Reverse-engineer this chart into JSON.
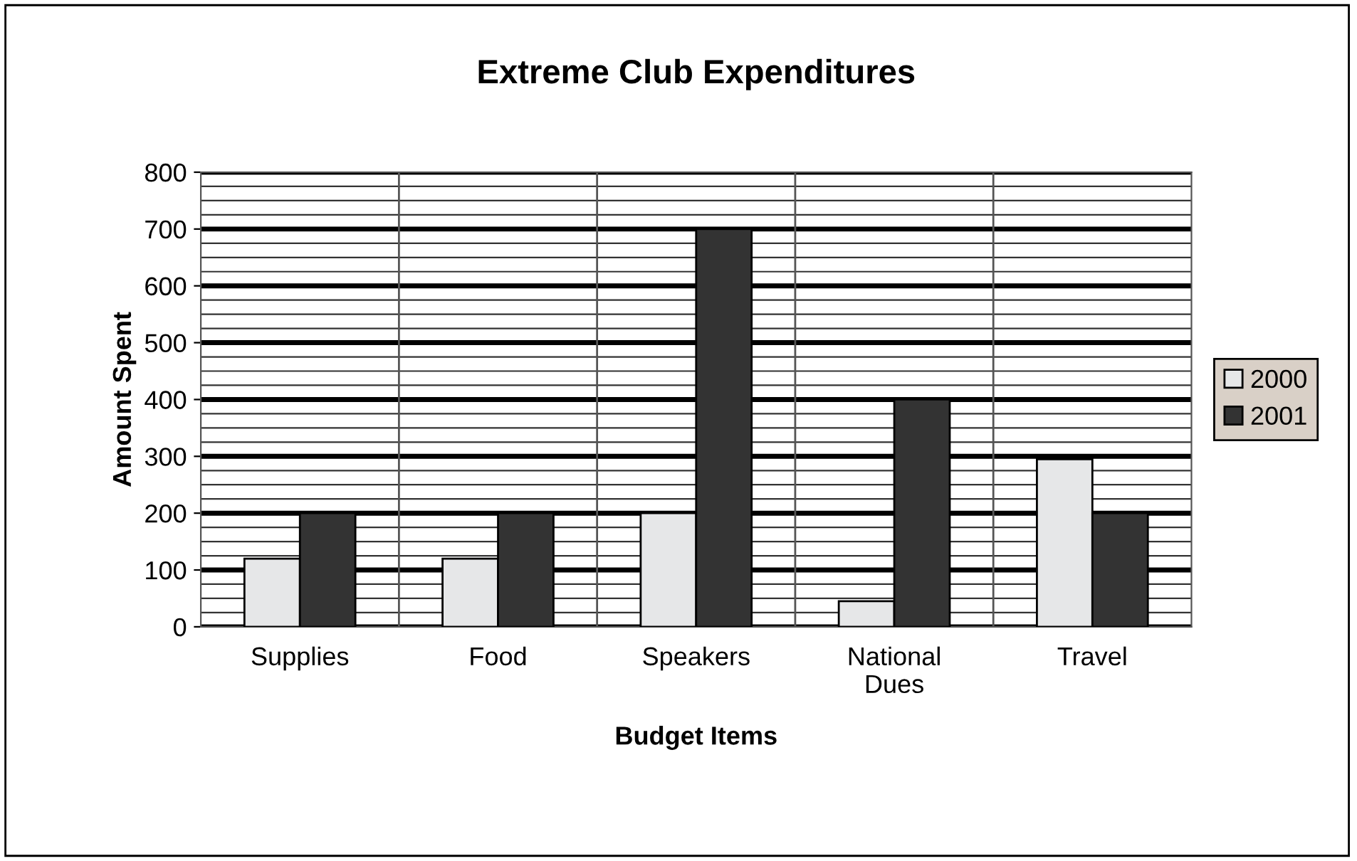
{
  "chart_data": {
    "type": "bar",
    "title": "Extreme Club Expenditures",
    "xlabel": "Budget Items",
    "ylabel": "Amount Spent",
    "categories": [
      "Supplies",
      "Food",
      "Speakers",
      "National\nDues",
      "Travel"
    ],
    "series": [
      {
        "name": "2000",
        "color": "#e6e7e8",
        "values": [
          120,
          120,
          200,
          45,
          295
        ]
      },
      {
        "name": "2001",
        "color": "#333333",
        "values": [
          200,
          200,
          700,
          400,
          200
        ]
      }
    ],
    "ylim": [
      0,
      800
    ],
    "yticks": [
      0,
      100,
      200,
      300,
      400,
      500,
      600,
      700,
      800
    ],
    "grid": true,
    "legend": "right"
  }
}
